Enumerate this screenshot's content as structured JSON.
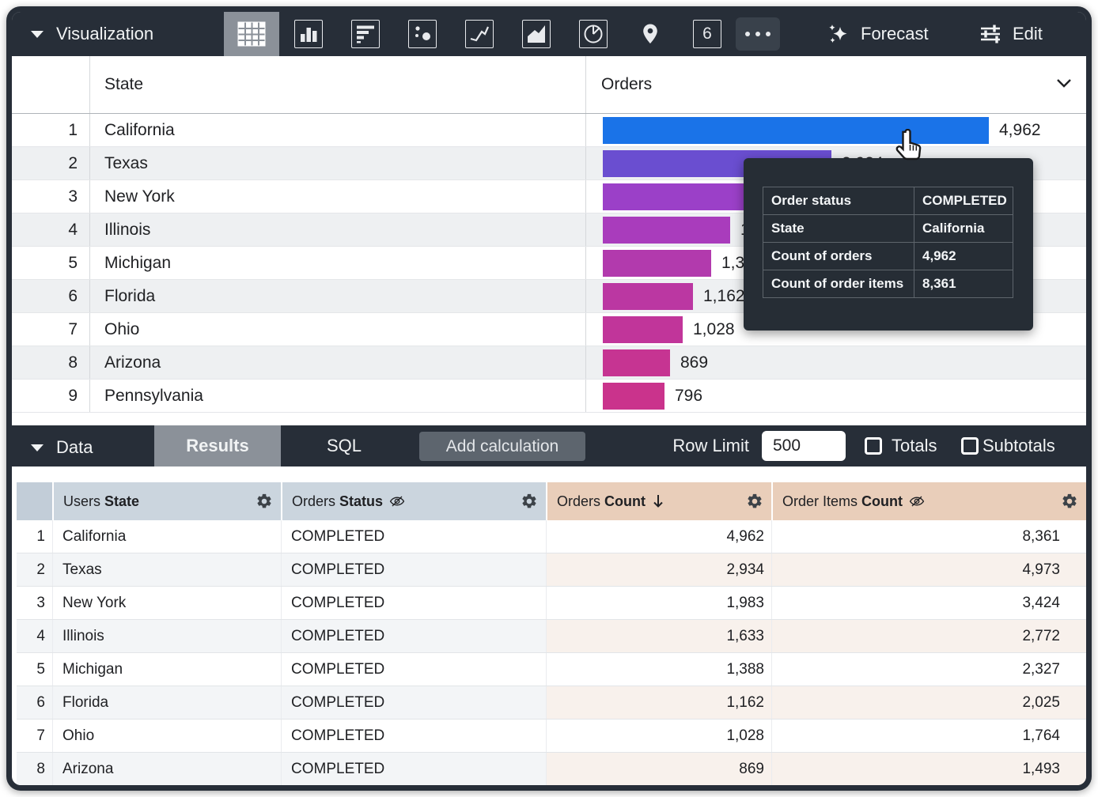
{
  "toolbar": {
    "title": "Visualization",
    "chart_types": [
      "table",
      "column",
      "bar",
      "scatter",
      "line",
      "area",
      "pie",
      "map",
      "single-value",
      "more"
    ],
    "selected_chart_type": "table",
    "single_value_icon_label": "6",
    "forecast_label": "Forecast",
    "edit_label": "Edit"
  },
  "viz_table": {
    "columns": {
      "state": "State",
      "orders": "Orders"
    },
    "max_value": 4962,
    "rows": [
      {
        "rank": "1",
        "state": "California",
        "value": 4962,
        "value_label": "4,962",
        "color": "#1A73E8"
      },
      {
        "rank": "2",
        "state": "Texas",
        "value": 2934,
        "value_label": "2,934",
        "color": "#6A4ED0"
      },
      {
        "rank": "3",
        "state": "New York",
        "value": 1983,
        "value_label": "1,983",
        "color": "#9B40C8"
      },
      {
        "rank": "4",
        "state": "Illinois",
        "value": 1633,
        "value_label": "1,633",
        "color": "#A93CBC"
      },
      {
        "rank": "5",
        "state": "Michigan",
        "value": 1388,
        "value_label": "1,388",
        "color": "#B23AAD"
      },
      {
        "rank": "6",
        "state": "Florida",
        "value": 1162,
        "value_label": "1,162",
        "color": "#BB37A2"
      },
      {
        "rank": "7",
        "state": "Ohio",
        "value": 1028,
        "value_label": "1,028",
        "color": "#C1359A"
      },
      {
        "rank": "8",
        "state": "Arizona",
        "value": 869,
        "value_label": "869",
        "color": "#C63492"
      },
      {
        "rank": "9",
        "state": "Pennsylvania",
        "value": 796,
        "value_label": "796",
        "color": "#CA338C"
      }
    ]
  },
  "chart_data": {
    "type": "bar",
    "orientation": "horizontal",
    "series_name": "Orders Count",
    "categories": [
      "California",
      "Texas",
      "New York",
      "Illinois",
      "Michigan",
      "Florida",
      "Ohio",
      "Arizona",
      "Pennsylvania"
    ],
    "values": [
      4962,
      2934,
      1983,
      1633,
      1388,
      1162,
      1028,
      869,
      796
    ],
    "xlim": [
      0,
      4962
    ]
  },
  "tooltip": {
    "rows": [
      {
        "label": "Order status",
        "value": "COMPLETED"
      },
      {
        "label": "State",
        "value": "California"
      },
      {
        "label": "Count of orders",
        "value": "4,962"
      },
      {
        "label": "Count of order items",
        "value": "8,361"
      }
    ]
  },
  "data_bar": {
    "title": "Data",
    "tabs": [
      {
        "label": "Results",
        "active": true
      },
      {
        "label": "SQL",
        "active": false
      }
    ],
    "add_calculation_label": "Add calculation",
    "row_limit_label": "Row Limit",
    "row_limit_value": "500",
    "totals_label": "Totals",
    "subtotals_label": "Subtotals"
  },
  "data_table": {
    "columns": [
      {
        "view": "Users",
        "field": "State",
        "type": "dimension",
        "hidden": false,
        "sorted": null
      },
      {
        "view": "Orders",
        "field": "Status",
        "type": "dimension",
        "hidden": true,
        "sorted": null
      },
      {
        "view": "Orders",
        "field": "Count",
        "type": "measure",
        "hidden": false,
        "sorted": "desc"
      },
      {
        "view": "Order Items",
        "field": "Count",
        "type": "measure",
        "hidden": true,
        "sorted": null
      }
    ],
    "rows": [
      {
        "num": "1",
        "state": "California",
        "status": "COMPLETED",
        "orders_count": "4,962",
        "order_items_count": "8,361"
      },
      {
        "num": "2",
        "state": "Texas",
        "status": "COMPLETED",
        "orders_count": "2,934",
        "order_items_count": "4,973"
      },
      {
        "num": "3",
        "state": "New York",
        "status": "COMPLETED",
        "orders_count": "1,983",
        "order_items_count": "3,424"
      },
      {
        "num": "4",
        "state": "Illinois",
        "status": "COMPLETED",
        "orders_count": "1,633",
        "order_items_count": "2,772"
      },
      {
        "num": "5",
        "state": "Michigan",
        "status": "COMPLETED",
        "orders_count": "1,388",
        "order_items_count": "2,327"
      },
      {
        "num": "6",
        "state": "Florida",
        "status": "COMPLETED",
        "orders_count": "1,162",
        "order_items_count": "2,025"
      },
      {
        "num": "7",
        "state": "Ohio",
        "status": "COMPLETED",
        "orders_count": "1,028",
        "order_items_count": "1,764"
      },
      {
        "num": "8",
        "state": "Arizona",
        "status": "COMPLETED",
        "orders_count": "869",
        "order_items_count": "1,493"
      }
    ]
  },
  "colors": {
    "frame": "#272E38",
    "selected_tile": "#8B9199",
    "dimension_header_bg": "#CBD5DE",
    "measure_header_bg": "#E9CEBA",
    "tooltip_bg": "#262D35"
  }
}
